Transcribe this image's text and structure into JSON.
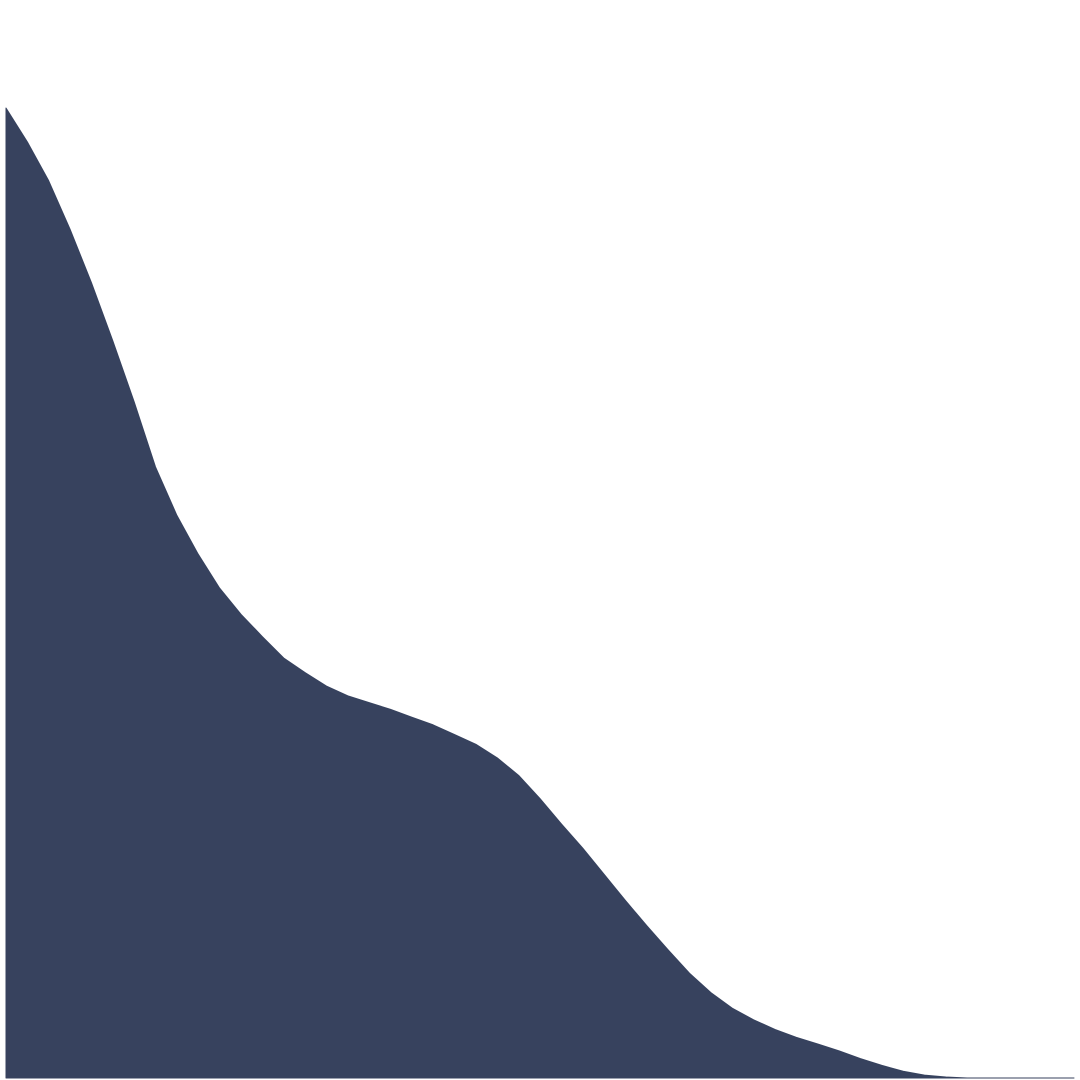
{
  "chart_data": {
    "type": "area",
    "title": "",
    "xlabel": "",
    "ylabel": "",
    "x": [
      0.0,
      0.02,
      0.04,
      0.06,
      0.08,
      0.1,
      0.12,
      0.14,
      0.16,
      0.18,
      0.2,
      0.22,
      0.24,
      0.26,
      0.28,
      0.3,
      0.32,
      0.34,
      0.36,
      0.38,
      0.4,
      0.42,
      0.44,
      0.46,
      0.48,
      0.5,
      0.52,
      0.54,
      0.56,
      0.58,
      0.6,
      0.62,
      0.64,
      0.66,
      0.68,
      0.7,
      0.72,
      0.74,
      0.76,
      0.78,
      0.8,
      0.82,
      0.84,
      0.86,
      0.88,
      0.9,
      0.92,
      0.94,
      0.96,
      0.98,
      1.0
    ],
    "y": [
      1.0,
      0.965,
      0.925,
      0.875,
      0.82,
      0.76,
      0.697,
      0.63,
      0.58,
      0.54,
      0.505,
      0.478,
      0.455,
      0.433,
      0.418,
      0.404,
      0.394,
      0.387,
      0.38,
      0.372,
      0.364,
      0.354,
      0.344,
      0.33,
      0.312,
      0.288,
      0.262,
      0.237,
      0.21,
      0.183,
      0.157,
      0.132,
      0.108,
      0.088,
      0.072,
      0.06,
      0.05,
      0.042,
      0.035,
      0.028,
      0.02,
      0.013,
      0.007,
      0.003,
      0.001,
      0.0,
      0.0,
      0.0,
      0.0,
      0.0,
      0.0
    ],
    "xlim": [
      0,
      1
    ],
    "ylim": [
      0,
      1
    ],
    "grid": false,
    "legend": "none",
    "fill_color": "#37425e"
  }
}
